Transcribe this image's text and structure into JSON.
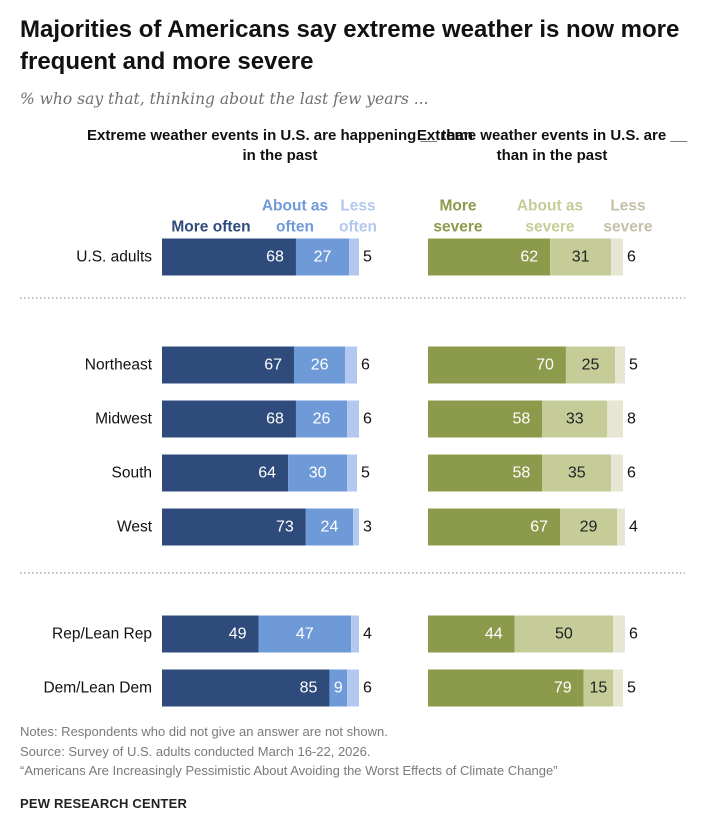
{
  "title": "Majorities of Americans say extreme weather is now more frequent and more severe",
  "subtitle": "% who say that, thinking about the last few years ...",
  "chart_data": [
    {
      "type": "bar",
      "stacked": true,
      "orientation": "horizontal",
      "title": "Extreme weather events in U.S. are happening __ than in the past",
      "categories": [
        "U.S. adults",
        "Northeast",
        "Midwest",
        "South",
        "West",
        "Rep/Lean Rep",
        "Dem/Lean Dem"
      ],
      "series": [
        {
          "name": "More often",
          "color": "#2f4b7c",
          "values": [
            68,
            67,
            68,
            64,
            73,
            49,
            85
          ]
        },
        {
          "name": "About as often",
          "color": "#6f9ad8",
          "values": [
            27,
            26,
            26,
            30,
            24,
            47,
            9
          ]
        },
        {
          "name": "Less often",
          "color": "#b2c8ee",
          "values": [
            5,
            6,
            6,
            5,
            3,
            4,
            6
          ]
        }
      ],
      "xlim": [
        0,
        100
      ]
    },
    {
      "type": "bar",
      "stacked": true,
      "orientation": "horizontal",
      "title": "Extreme weather events in U.S. are __ than in the past",
      "categories": [
        "U.S. adults",
        "Northeast",
        "Midwest",
        "South",
        "West",
        "Rep/Lean Rep",
        "Dem/Lean Dem"
      ],
      "series": [
        {
          "name": "More severe",
          "color": "#8c9a4b",
          "values": [
            62,
            70,
            58,
            58,
            67,
            44,
            79
          ]
        },
        {
          "name": "About as severe",
          "color": "#c6cc98",
          "values": [
            31,
            25,
            33,
            35,
            29,
            50,
            15
          ]
        },
        {
          "name": "Less severe",
          "color": "#e6e6d2",
          "values": [
            6,
            5,
            8,
            6,
            4,
            6,
            5
          ]
        }
      ],
      "xlim": [
        0,
        100
      ]
    }
  ],
  "notes": {
    "line1": "Notes: Respondents who did not give an answer are not shown.",
    "line2": "Source: Survey of U.S. adults conducted March 16-22, 2026.",
    "line3": "“Americans Are Increasingly Pessimistic About Avoiding the Worst Effects of Climate Change”"
  },
  "brand": "PEW RESEARCH CENTER"
}
